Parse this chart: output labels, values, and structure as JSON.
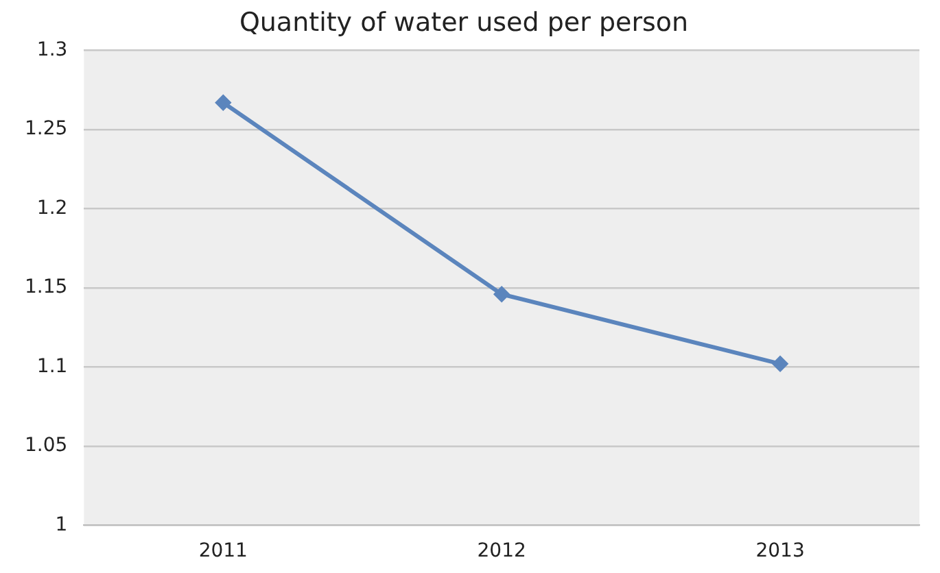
{
  "chart_data": {
    "type": "line",
    "title": "Quantity of water used per person",
    "categories": [
      "2011",
      "2012",
      "2013"
    ],
    "series": [
      {
        "color": "#5b85bd",
        "values": [
          1.267,
          1.146,
          1.102
        ]
      }
    ],
    "ylim": [
      1,
      1.3
    ],
    "yticks": [
      1,
      1.05,
      1.1,
      1.15,
      1.2,
      1.25,
      1.3
    ],
    "grid": "y",
    "legend": false,
    "marker": "diamond",
    "line_style": "solid"
  }
}
